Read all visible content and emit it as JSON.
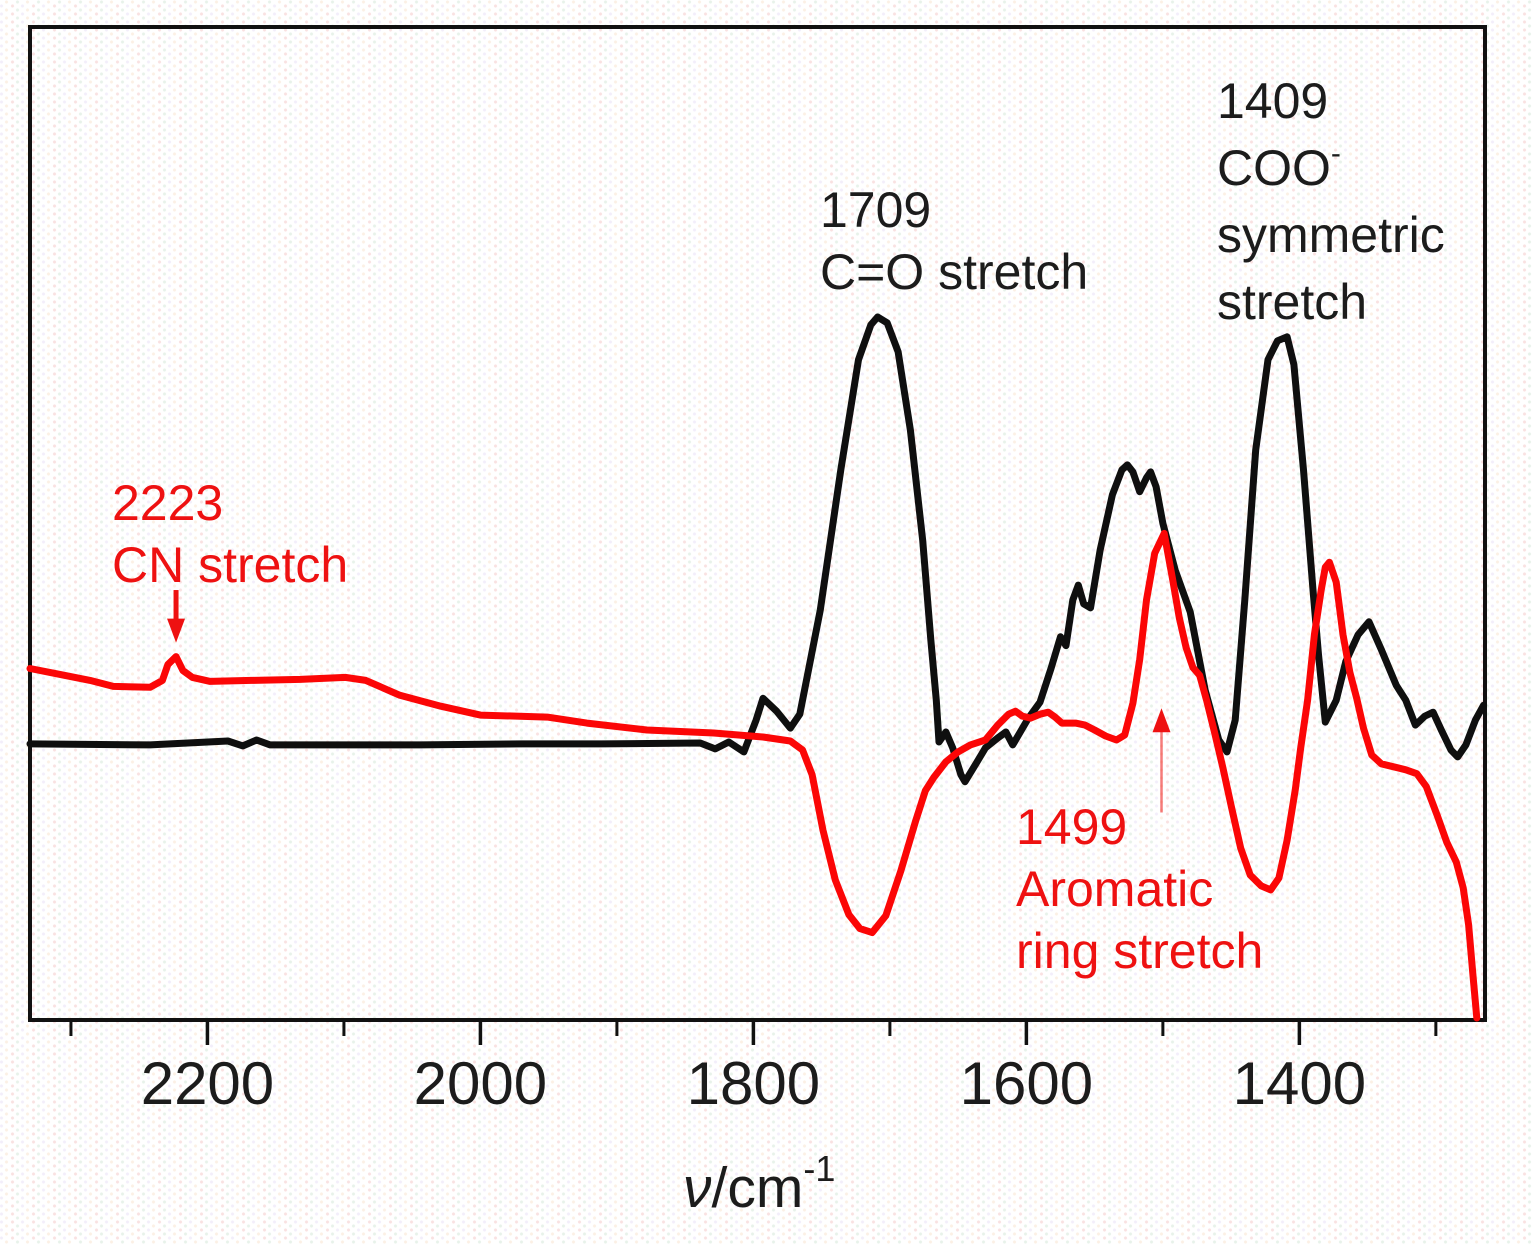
{
  "colors": {
    "red_trace": "#fb0606",
    "black_trace": "#0f0f0f",
    "red_text": "#ee1111",
    "black_text": "#1c1c1c",
    "frame": "#111111"
  },
  "chart_data": {
    "type": "line",
    "title": "",
    "xlabel": {
      "nu": "ν",
      "rest": "/cm",
      "sup": "-1"
    },
    "ylabel": "",
    "grid": false,
    "legend": "none",
    "x_axis": {
      "unit": "cm-1",
      "reversed": true,
      "max": 2330,
      "min": 1264,
      "ticks": [
        {
          "value": 2200,
          "label": "2200"
        },
        {
          "value": 2000,
          "label": "2000"
        },
        {
          "value": 1800,
          "label": "1800"
        },
        {
          "value": 1600,
          "label": "1600"
        },
        {
          "value": 1400,
          "label": "1400"
        }
      ],
      "minor_ticks": [
        2300,
        2100,
        1900,
        1700,
        1500,
        1300
      ]
    },
    "y_axis": {
      "visible": false,
      "range": [
        0,
        1
      ]
    },
    "series": [
      {
        "id": "black-spectrum",
        "name": "black trace",
        "color": "#0f0f0f",
        "points": [
          [
            2330,
            0.278
          ],
          [
            2242,
            0.277
          ],
          [
            2185,
            0.281
          ],
          [
            2174,
            0.276
          ],
          [
            2164,
            0.282
          ],
          [
            2154,
            0.277
          ],
          [
            2100,
            0.277
          ],
          [
            2044,
            0.277
          ],
          [
            1970,
            0.278
          ],
          [
            1912,
            0.278
          ],
          [
            1839,
            0.279
          ],
          [
            1828,
            0.273
          ],
          [
            1818,
            0.28
          ],
          [
            1807,
            0.27
          ],
          [
            1798,
            0.302
          ],
          [
            1793,
            0.324
          ],
          [
            1783,
            0.311
          ],
          [
            1773,
            0.294
          ],
          [
            1766,
            0.308
          ],
          [
            1751,
            0.413
          ],
          [
            1736,
            0.554
          ],
          [
            1723,
            0.665
          ],
          [
            1714,
            0.7
          ],
          [
            1709,
            0.708
          ],
          [
            1702,
            0.702
          ],
          [
            1694,
            0.673
          ],
          [
            1685,
            0.594
          ],
          [
            1676,
            0.483
          ],
          [
            1670,
            0.383
          ],
          [
            1666,
            0.322
          ],
          [
            1664,
            0.28
          ],
          [
            1659,
            0.29
          ],
          [
            1654,
            0.274
          ],
          [
            1648,
            0.247
          ],
          [
            1645,
            0.24
          ],
          [
            1637,
            0.258
          ],
          [
            1630,
            0.274
          ],
          [
            1621,
            0.284
          ],
          [
            1615,
            0.29
          ],
          [
            1610,
            0.277
          ],
          [
            1599,
            0.303
          ],
          [
            1590,
            0.32
          ],
          [
            1582,
            0.354
          ],
          [
            1575,
            0.386
          ],
          [
            1571,
            0.377
          ],
          [
            1566,
            0.423
          ],
          [
            1562,
            0.438
          ],
          [
            1558,
            0.419
          ],
          [
            1553,
            0.415
          ],
          [
            1546,
            0.473
          ],
          [
            1537,
            0.529
          ],
          [
            1530,
            0.554
          ],
          [
            1526,
            0.559
          ],
          [
            1522,
            0.552
          ],
          [
            1517,
            0.532
          ],
          [
            1512,
            0.546
          ],
          [
            1509,
            0.552
          ],
          [
            1505,
            0.537
          ],
          [
            1500,
            0.5
          ],
          [
            1491,
            0.453
          ],
          [
            1480,
            0.411
          ],
          [
            1469,
            0.332
          ],
          [
            1459,
            0.282
          ],
          [
            1453,
            0.27
          ],
          [
            1447,
            0.302
          ],
          [
            1440,
            0.423
          ],
          [
            1432,
            0.574
          ],
          [
            1423,
            0.665
          ],
          [
            1416,
            0.684
          ],
          [
            1409,
            0.688
          ],
          [
            1404,
            0.66
          ],
          [
            1397,
            0.554
          ],
          [
            1390,
            0.433
          ],
          [
            1386,
            0.368
          ],
          [
            1381,
            0.3
          ],
          [
            1373,
            0.322
          ],
          [
            1366,
            0.361
          ],
          [
            1357,
            0.388
          ],
          [
            1349,
            0.401
          ],
          [
            1340,
            0.373
          ],
          [
            1329,
            0.337
          ],
          [
            1322,
            0.322
          ],
          [
            1315,
            0.297
          ],
          [
            1308,
            0.306
          ],
          [
            1302,
            0.31
          ],
          [
            1296,
            0.292
          ],
          [
            1289,
            0.272
          ],
          [
            1284,
            0.265
          ],
          [
            1278,
            0.277
          ],
          [
            1271,
            0.302
          ],
          [
            1265,
            0.317
          ]
        ]
      },
      {
        "id": "red-spectrum",
        "name": "red trace",
        "color": "#fb0606",
        "points": [
          [
            2330,
            0.354
          ],
          [
            2308,
            0.348
          ],
          [
            2286,
            0.342
          ],
          [
            2269,
            0.336
          ],
          [
            2242,
            0.335
          ],
          [
            2233,
            0.342
          ],
          [
            2229,
            0.358
          ],
          [
            2223,
            0.366
          ],
          [
            2218,
            0.352
          ],
          [
            2211,
            0.345
          ],
          [
            2198,
            0.341
          ],
          [
            2168,
            0.342
          ],
          [
            2132,
            0.343
          ],
          [
            2099,
            0.345
          ],
          [
            2084,
            0.342
          ],
          [
            2059,
            0.327
          ],
          [
            2029,
            0.316
          ],
          [
            2000,
            0.307
          ],
          [
            1951,
            0.305
          ],
          [
            1922,
            0.299
          ],
          [
            1878,
            0.292
          ],
          [
            1829,
            0.289
          ],
          [
            1793,
            0.285
          ],
          [
            1773,
            0.281
          ],
          [
            1764,
            0.272
          ],
          [
            1757,
            0.247
          ],
          [
            1749,
            0.191
          ],
          [
            1740,
            0.141
          ],
          [
            1730,
            0.106
          ],
          [
            1722,
            0.092
          ],
          [
            1713,
            0.088
          ],
          [
            1703,
            0.105
          ],
          [
            1692,
            0.15
          ],
          [
            1681,
            0.201
          ],
          [
            1674,
            0.231
          ],
          [
            1668,
            0.244
          ],
          [
            1659,
            0.26
          ],
          [
            1650,
            0.27
          ],
          [
            1641,
            0.277
          ],
          [
            1630,
            0.282
          ],
          [
            1621,
            0.297
          ],
          [
            1613,
            0.308
          ],
          [
            1608,
            0.311
          ],
          [
            1603,
            0.306
          ],
          [
            1597,
            0.304
          ],
          [
            1590,
            0.308
          ],
          [
            1584,
            0.31
          ],
          [
            1579,
            0.305
          ],
          [
            1574,
            0.299
          ],
          [
            1564,
            0.299
          ],
          [
            1557,
            0.297
          ],
          [
            1550,
            0.292
          ],
          [
            1542,
            0.286
          ],
          [
            1534,
            0.282
          ],
          [
            1528,
            0.287
          ],
          [
            1522,
            0.319
          ],
          [
            1517,
            0.363
          ],
          [
            1512,
            0.423
          ],
          [
            1506,
            0.47
          ],
          [
            1499,
            0.49
          ],
          [
            1493,
            0.445
          ],
          [
            1488,
            0.405
          ],
          [
            1483,
            0.375
          ],
          [
            1478,
            0.355
          ],
          [
            1473,
            0.347
          ],
          [
            1468,
            0.322
          ],
          [
            1462,
            0.289
          ],
          [
            1456,
            0.254
          ],
          [
            1450,
            0.216
          ],
          [
            1443,
            0.173
          ],
          [
            1436,
            0.146
          ],
          [
            1428,
            0.135
          ],
          [
            1421,
            0.131
          ],
          [
            1415,
            0.143
          ],
          [
            1409,
            0.181
          ],
          [
            1403,
            0.232
          ],
          [
            1399,
            0.274
          ],
          [
            1394,
            0.322
          ],
          [
            1389,
            0.388
          ],
          [
            1384,
            0.433
          ],
          [
            1381,
            0.456
          ],
          [
            1378,
            0.461
          ],
          [
            1373,
            0.441
          ],
          [
            1368,
            0.388
          ],
          [
            1363,
            0.35
          ],
          [
            1358,
            0.324
          ],
          [
            1353,
            0.294
          ],
          [
            1347,
            0.267
          ],
          [
            1340,
            0.258
          ],
          [
            1331,
            0.255
          ],
          [
            1322,
            0.252
          ],
          [
            1314,
            0.248
          ],
          [
            1307,
            0.235
          ],
          [
            1299,
            0.206
          ],
          [
            1292,
            0.179
          ],
          [
            1285,
            0.159
          ],
          [
            1280,
            0.133
          ],
          [
            1276,
            0.096
          ],
          [
            1273,
            0.048
          ],
          [
            1270,
            0.002
          ]
        ]
      }
    ],
    "annotations": {
      "co_stretch": {
        "series": "black trace",
        "lines": [
          "1709",
          "C=O stretch"
        ]
      },
      "coo_symmetric": {
        "series": "black trace",
        "line1": "1409",
        "line2_base": "COO",
        "line2_sup": "-",
        "line3": "symmetric",
        "line4": "stretch"
      },
      "cn_stretch": {
        "series": "red trace",
        "lines": [
          "2223",
          "CN stretch"
        ]
      },
      "aromatic": {
        "series": "red trace",
        "lines": [
          "1499",
          "Aromatic",
          "ring stretch"
        ]
      }
    },
    "arrows": [
      {
        "direction": "down",
        "at_wavenumber": 2223,
        "tail_intensity": 0.433,
        "tip_intensity": 0.38,
        "color": "#ee1111"
      },
      {
        "direction": "up",
        "at_wavenumber": 1501,
        "tail_intensity": 0.209,
        "tip_intensity": 0.314,
        "color": "#ee1111"
      }
    ]
  }
}
